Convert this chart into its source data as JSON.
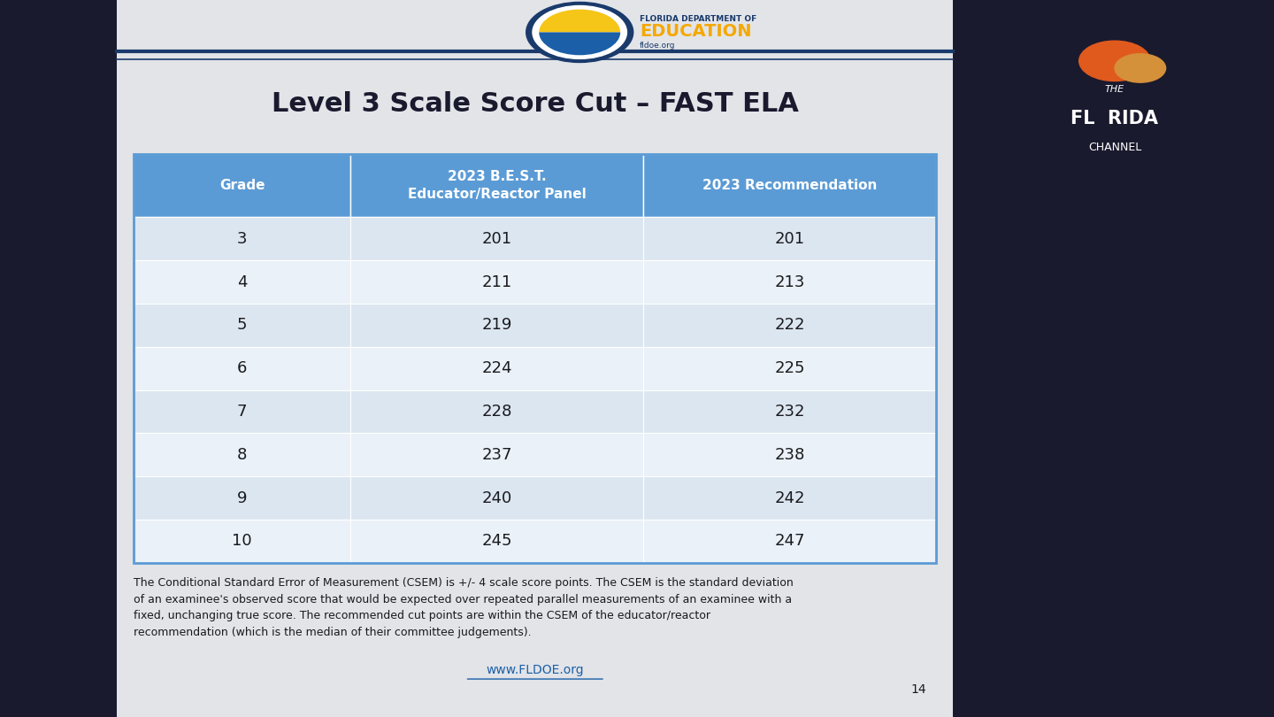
{
  "title": "Level 3 Scale Score Cut – FAST ELA",
  "title_fontsize": 22,
  "title_color": "#1a1a2e",
  "col_headers": [
    "Grade",
    "2023 B.E.S.T.\nEducator/Reactor Panel",
    "2023 Recommendation"
  ],
  "grades": [
    "3",
    "4",
    "5",
    "6",
    "7",
    "8",
    "9",
    "10"
  ],
  "best_scores": [
    "201",
    "211",
    "219",
    "224",
    "228",
    "237",
    "240",
    "245"
  ],
  "rec_scores": [
    "201",
    "213",
    "222",
    "225",
    "232",
    "238",
    "242",
    "247"
  ],
  "header_bg": "#5b9bd5",
  "header_text": "#ffffff",
  "row_bg_odd": "#dce6f1",
  "row_bg_even": "#eaf1f8",
  "cell_text_color": "#1a1a1e",
  "table_outline_color": "#5b9bd5",
  "background_color": "#e2e4e8",
  "slide_bg": "#1a1a2e",
  "footnote_bold": "The Conditional Standard Error of Measurement (CSEM) is +/- 4 scale score points.",
  "footnote_rest": " The CSEM is the standard deviation\nof an examinee's observed score that would be expected over repeated parallel measurements of an examinee with a\nfixed, unchanging true score. The recommended cut points are within the CSEM of the educator/reactor\nrecommendation (which is the median of their committee judgements).",
  "footnote_fontsize": 9,
  "website": "www.FLDOE.org",
  "page_number": "14"
}
